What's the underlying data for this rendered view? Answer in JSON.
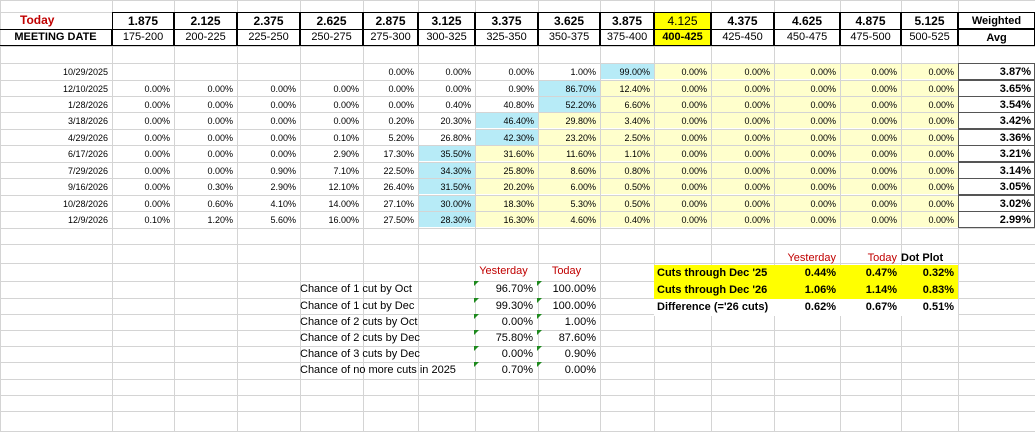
{
  "header": {
    "today_label": "Today",
    "meeting_date_label": "MEETING DATE",
    "midpoints": [
      "1.875",
      "2.125",
      "2.375",
      "2.625",
      "2.875",
      "3.125",
      "3.375",
      "3.625",
      "3.875",
      "4.125",
      "4.375",
      "4.625",
      "4.875",
      "5.125"
    ],
    "ranges": [
      "175-200",
      "200-225",
      "225-250",
      "250-275",
      "275-300",
      "300-325",
      "325-350",
      "350-375",
      "375-400",
      "400-425",
      "425-450",
      "450-475",
      "475-500",
      "500-525"
    ],
    "weighted_label": "Weighted",
    "avg_label": "Avg"
  },
  "meetings": [
    {
      "date": "10/29/2025",
      "values": [
        "",
        "",
        "",
        "",
        "0.00%",
        "0.00%",
        "0.00%",
        "1.00%",
        "99.00%",
        "0.00%",
        "0.00%",
        "0.00%",
        "0.00%",
        "0.00%"
      ],
      "avg": "3.87%"
    },
    {
      "date": "12/10/2025",
      "values": [
        "0.00%",
        "0.00%",
        "0.00%",
        "0.00%",
        "0.00%",
        "0.00%",
        "0.90%",
        "86.70%",
        "12.40%",
        "0.00%",
        "0.00%",
        "0.00%",
        "0.00%",
        "0.00%"
      ],
      "avg": "3.65%"
    },
    {
      "date": "1/28/2026",
      "values": [
        "0.00%",
        "0.00%",
        "0.00%",
        "0.00%",
        "0.00%",
        "0.40%",
        "40.80%",
        "52.20%",
        "6.60%",
        "0.00%",
        "0.00%",
        "0.00%",
        "0.00%",
        "0.00%"
      ],
      "avg": "3.54%"
    },
    {
      "date": "3/18/2026",
      "values": [
        "0.00%",
        "0.00%",
        "0.00%",
        "0.00%",
        "0.20%",
        "20.30%",
        "46.40%",
        "29.80%",
        "3.40%",
        "0.00%",
        "0.00%",
        "0.00%",
        "0.00%",
        "0.00%"
      ],
      "avg": "3.42%"
    },
    {
      "date": "4/29/2026",
      "values": [
        "0.00%",
        "0.00%",
        "0.00%",
        "0.10%",
        "5.20%",
        "26.80%",
        "42.30%",
        "23.20%",
        "2.50%",
        "0.00%",
        "0.00%",
        "0.00%",
        "0.00%",
        "0.00%"
      ],
      "avg": "3.36%"
    },
    {
      "date": "6/17/2026",
      "values": [
        "0.00%",
        "0.00%",
        "0.00%",
        "2.90%",
        "17.30%",
        "35.50%",
        "31.60%",
        "11.60%",
        "1.10%",
        "0.00%",
        "0.00%",
        "0.00%",
        "0.00%",
        "0.00%"
      ],
      "avg": "3.21%"
    },
    {
      "date": "7/29/2026",
      "values": [
        "0.00%",
        "0.00%",
        "0.90%",
        "7.10%",
        "22.50%",
        "34.30%",
        "25.80%",
        "8.60%",
        "0.80%",
        "0.00%",
        "0.00%",
        "0.00%",
        "0.00%",
        "0.00%"
      ],
      "avg": "3.14%"
    },
    {
      "date": "9/16/2026",
      "values": [
        "0.00%",
        "0.30%",
        "2.90%",
        "12.10%",
        "26.40%",
        "31.50%",
        "20.20%",
        "6.00%",
        "0.50%",
        "0.00%",
        "0.00%",
        "0.00%",
        "0.00%",
        "0.00%"
      ],
      "avg": "3.05%"
    },
    {
      "date": "10/28/2026",
      "values": [
        "0.00%",
        "0.60%",
        "4.10%",
        "14.00%",
        "27.10%",
        "30.00%",
        "18.30%",
        "5.30%",
        "0.50%",
        "0.00%",
        "0.00%",
        "0.00%",
        "0.00%",
        "0.00%"
      ],
      "avg": "3.02%"
    },
    {
      "date": "12/9/2026",
      "values": [
        "0.10%",
        "1.20%",
        "5.60%",
        "16.00%",
        "27.50%",
        "28.30%",
        "16.30%",
        "4.60%",
        "0.40%",
        "0.00%",
        "0.00%",
        "0.00%",
        "0.00%",
        "0.00%"
      ],
      "avg": "2.99%"
    }
  ],
  "highlight_cols": [
    8,
    7,
    7,
    6,
    6,
    5,
    5,
    5,
    5,
    5
  ],
  "chances": {
    "yesterday_label": "Yesterday",
    "today_label": "Today",
    "rows": [
      {
        "label": "Chance of 1 cut by Oct",
        "yesterday": "96.70%",
        "today": "100.00%"
      },
      {
        "label": "Chance of 1 cut by Dec",
        "yesterday": "99.30%",
        "today": "100.00%"
      },
      {
        "label": "Chance of 2 cuts by Oct",
        "yesterday": "0.00%",
        "today": "1.00%"
      },
      {
        "label": "Chance of 2 cuts by Dec",
        "yesterday": "75.80%",
        "today": "87.60%"
      },
      {
        "label": "Chance of 3 cuts by Dec",
        "yesterday": "0.00%",
        "today": "0.90%"
      },
      {
        "label": "Chance of no more cuts in 2025",
        "yesterday": "0.70%",
        "today": "0.00%"
      }
    ]
  },
  "cuts": {
    "yesterday_label": "Yesterday",
    "today_label": "Today",
    "dotplot_label": "Dot Plot",
    "rows": [
      {
        "label": "Cuts through Dec '25",
        "yesterday": "0.44%",
        "today": "0.47%",
        "dotplot": "0.32%"
      },
      {
        "label": "Cuts through Dec '26",
        "yesterday": "1.06%",
        "today": "1.14%",
        "dotplot": "0.83%"
      },
      {
        "label": "Difference (='26 cuts)",
        "yesterday": "0.62%",
        "today": "0.67%",
        "dotplot": "0.51%"
      }
    ]
  },
  "colors": {
    "highlight_yellow": "#ffff00",
    "light_yellow": "#ffffcc",
    "light_blue": "#b7ebf7",
    "red_text": "#c00000",
    "header_border": "#000000"
  }
}
